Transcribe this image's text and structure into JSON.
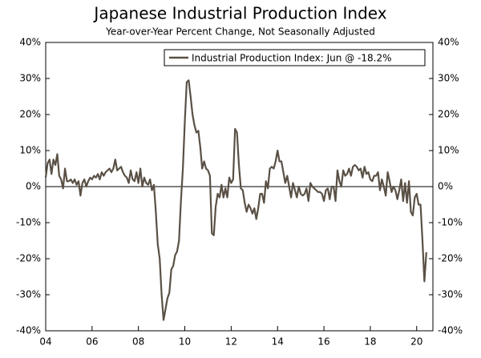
{
  "chart_data": {
    "type": "line",
    "title": "Japanese Industrial Production Index",
    "subtitle": "Year-over-Year Percent Change, Not Seasonally Adjusted",
    "x": [
      2004,
      2004.083,
      2004.167,
      2004.25,
      2004.333,
      2004.417,
      2004.5,
      2004.583,
      2004.667,
      2004.75,
      2004.833,
      2004.917,
      2005,
      2005.083,
      2005.167,
      2005.25,
      2005.333,
      2005.417,
      2005.5,
      2005.583,
      2005.667,
      2005.75,
      2005.833,
      2005.917,
      2006,
      2006.083,
      2006.167,
      2006.25,
      2006.333,
      2006.417,
      2006.5,
      2006.583,
      2006.667,
      2006.75,
      2006.833,
      2006.917,
      2007,
      2007.083,
      2007.167,
      2007.25,
      2007.333,
      2007.417,
      2007.5,
      2007.583,
      2007.667,
      2007.75,
      2007.833,
      2007.917,
      2008,
      2008.083,
      2008.167,
      2008.25,
      2008.333,
      2008.417,
      2008.5,
      2008.583,
      2008.667,
      2008.75,
      2008.833,
      2008.917,
      2009,
      2009.083,
      2009.167,
      2009.25,
      2009.333,
      2009.417,
      2009.5,
      2009.583,
      2009.667,
      2009.75,
      2009.833,
      2009.917,
      2010,
      2010.083,
      2010.167,
      2010.25,
      2010.333,
      2010.417,
      2010.5,
      2010.583,
      2010.667,
      2010.75,
      2010.833,
      2010.917,
      2011,
      2011.083,
      2011.167,
      2011.25,
      2011.333,
      2011.417,
      2011.5,
      2011.583,
      2011.667,
      2011.75,
      2011.833,
      2011.917,
      2012,
      2012.083,
      2012.167,
      2012.25,
      2012.333,
      2012.417,
      2012.5,
      2012.583,
      2012.667,
      2012.75,
      2012.833,
      2012.917,
      2013,
      2013.083,
      2013.167,
      2013.25,
      2013.333,
      2013.417,
      2013.5,
      2013.583,
      2013.667,
      2013.75,
      2013.833,
      2013.917,
      2014,
      2014.083,
      2014.167,
      2014.25,
      2014.333,
      2014.417,
      2014.5,
      2014.583,
      2014.667,
      2014.75,
      2014.833,
      2014.917,
      2015,
      2015.083,
      2015.167,
      2015.25,
      2015.333,
      2015.417,
      2015.5,
      2015.583,
      2015.667,
      2015.75,
      2015.833,
      2015.917,
      2016,
      2016.083,
      2016.167,
      2016.25,
      2016.333,
      2016.417,
      2016.5,
      2016.583,
      2016.667,
      2016.75,
      2016.833,
      2016.917,
      2017,
      2017.083,
      2017.167,
      2017.25,
      2017.333,
      2017.417,
      2017.5,
      2017.583,
      2017.667,
      2017.75,
      2017.833,
      2017.917,
      2018,
      2018.083,
      2018.167,
      2018.25,
      2018.333,
      2018.417,
      2018.5,
      2018.583,
      2018.667,
      2018.75,
      2018.833,
      2018.917,
      2019,
      2019.083,
      2019.167,
      2019.25,
      2019.333,
      2019.417,
      2019.5,
      2019.583,
      2019.667,
      2019.75,
      2019.833,
      2019.917,
      2020,
      2020.083,
      2020.167,
      2020.25,
      2020.333,
      2020.417
    ],
    "series": [
      {
        "name": "Industrial Production Index: Jun @ -18.2%",
        "color": "#5a5045",
        "values": [
          2.5,
          6.5,
          7.5,
          3.5,
          7.5,
          6,
          9,
          3,
          2,
          -0.5,
          5,
          1.5,
          1.5,
          2,
          1,
          2,
          0.5,
          1.5,
          -2.5,
          1,
          2,
          0,
          1.5,
          2.5,
          2,
          3,
          2.5,
          3.5,
          2,
          4,
          3,
          4,
          4.5,
          5,
          4,
          5,
          7.5,
          4.5,
          5,
          5.5,
          4,
          3,
          2.5,
          1,
          4.5,
          2,
          1.5,
          4,
          1,
          5,
          0,
          2.5,
          1,
          0.5,
          2,
          -1,
          0.5,
          -7,
          -16,
          -20,
          -30,
          -37,
          -34,
          -31,
          -29.5,
          -23,
          -22,
          -19,
          -18,
          -15,
          -4,
          5,
          18,
          29,
          29.5,
          25,
          20,
          17,
          15,
          15.5,
          11,
          5,
          7,
          5,
          4.5,
          3,
          -13,
          -13.5,
          -5.5,
          -2,
          -3,
          0.5,
          -3,
          -0.5,
          -3,
          2.5,
          1,
          2,
          16,
          15,
          6,
          -0.5,
          -1,
          -4.5,
          -7,
          -5,
          -6,
          -7.5,
          -6,
          -9,
          -6,
          -2,
          -2,
          -4.5,
          1.5,
          -0.5,
          5,
          5.5,
          5,
          7,
          10,
          7,
          7,
          4,
          1,
          3,
          0,
          -3,
          1,
          -1,
          -3,
          0,
          -2,
          -2.5,
          -2,
          -0.5,
          -4,
          1,
          0,
          -0.5,
          -1,
          -1.5,
          -1.5,
          -2,
          -4,
          -1,
          -0.5,
          -3.5,
          0,
          0,
          -4,
          4.5,
          1.5,
          0,
          4.5,
          3,
          3.5,
          5,
          3,
          5.5,
          6,
          5.5,
          4.5,
          5,
          2.5,
          5.5,
          3.5,
          4,
          2,
          1.5,
          3,
          3,
          4,
          -1,
          2,
          0,
          -2.5,
          4,
          1.5,
          -1.5,
          0,
          -1,
          -3.5,
          -1,
          2,
          -4,
          1,
          -4.5,
          1.5,
          -7,
          -8,
          -3,
          -2,
          -5,
          -5,
          -15,
          -26.3,
          -18.2
        ]
      }
    ],
    "xlim": [
      2004,
      2020.7
    ],
    "xticks": [
      {
        "value": 2004,
        "label": "04"
      },
      {
        "value": 2006,
        "label": "06"
      },
      {
        "value": 2008,
        "label": "08"
      },
      {
        "value": 2010,
        "label": "10"
      },
      {
        "value": 2012,
        "label": "12"
      },
      {
        "value": 2014,
        "label": "14"
      },
      {
        "value": 2016,
        "label": "16"
      },
      {
        "value": 2018,
        "label": "18"
      },
      {
        "value": 2020,
        "label": "20"
      }
    ],
    "ylim": [
      -40,
      40
    ],
    "yticks": [
      {
        "value": -40,
        "label": "-40%"
      },
      {
        "value": -30,
        "label": "-30%"
      },
      {
        "value": -20,
        "label": "-20%"
      },
      {
        "value": -10,
        "label": "-10%"
      },
      {
        "value": 0,
        "label": "0%"
      },
      {
        "value": 10,
        "label": "10%"
      },
      {
        "value": 20,
        "label": "20%"
      },
      {
        "value": 30,
        "label": "30%"
      },
      {
        "value": 40,
        "label": "40%"
      }
    ],
    "y2lim": [
      -40,
      40
    ],
    "y2ticks": [
      {
        "value": -40,
        "label": "-40%"
      },
      {
        "value": -30,
        "label": "-30%"
      },
      {
        "value": -20,
        "label": "-20%"
      },
      {
        "value": -10,
        "label": "-10%"
      },
      {
        "value": 0,
        "label": "0%"
      },
      {
        "value": 10,
        "label": "10%"
      },
      {
        "value": 20,
        "label": "20%"
      },
      {
        "value": 30,
        "label": "30%"
      },
      {
        "value": 40,
        "label": "40%"
      }
    ],
    "legend": "top-right"
  }
}
